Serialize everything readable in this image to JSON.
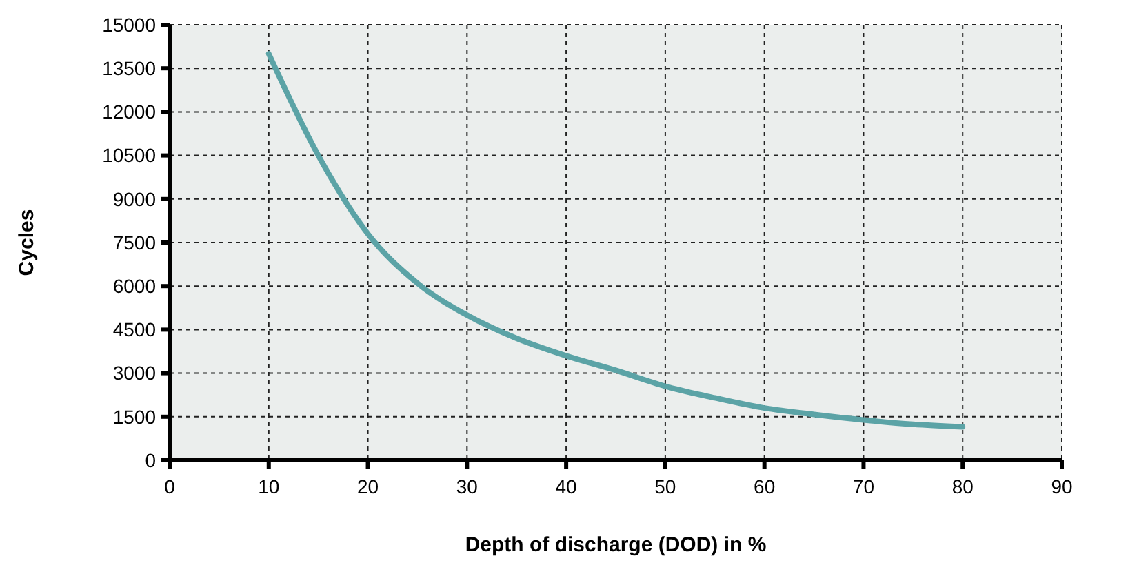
{
  "chart_data": {
    "type": "line",
    "xlabel": "Depth of discharge (DOD) in %",
    "ylabel": "Cycles",
    "xlim": [
      0,
      90
    ],
    "xticks": [
      0,
      10,
      20,
      30,
      40,
      50,
      60,
      70,
      80,
      90
    ],
    "ylim": [
      0,
      15000
    ],
    "yticks": [
      0,
      1500,
      3000,
      4500,
      6000,
      7500,
      9000,
      10500,
      12000,
      13500,
      15000
    ],
    "grid": true,
    "line_style": "solid",
    "marker": "none",
    "series": [
      {
        "color": "#5ba3a6",
        "x": [
          10,
          15,
          20,
          25,
          30,
          35,
          40,
          45,
          50,
          55,
          60,
          65,
          70,
          75,
          80
        ],
        "values": [
          14000,
          10500,
          7800,
          6100,
          5000,
          4200,
          3600,
          3100,
          2550,
          2150,
          1800,
          1580,
          1390,
          1240,
          1150
        ]
      }
    ]
  }
}
